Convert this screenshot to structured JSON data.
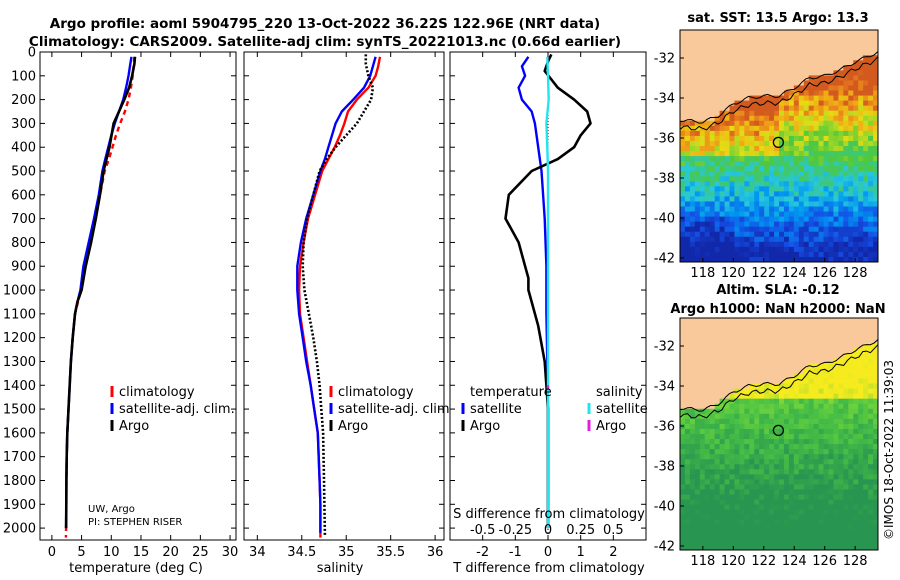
{
  "header": {
    "line1": "Argo profile: aoml 5904795_220 13-Oct-2022 36.22S 122.96E (NRT data)",
    "line2": "Climatology: CARS2009. Satellite-adj clim: synTS_20221013.nc (0.66d earlier)"
  },
  "credit": "UW, Argo",
  "pi": "PI: STEPHEN RISER",
  "watermark": "©IMOS 18-Oct-2022 11:39:03",
  "colors": {
    "climatology": "#ff0000",
    "satellite": "#0000ff",
    "argo": "#000000",
    "sat_salinity": "#22e5f2",
    "argo_salinity": "#e020e0",
    "land": "#f9c99b"
  },
  "chart_data": [
    {
      "type": "line",
      "panel": "temperature",
      "xlabel": "temperature (deg C)",
      "xlim": [
        -2,
        31
      ],
      "ylim": [
        0,
        2050
      ],
      "y_reversed": true,
      "xticks": [
        0,
        5,
        10,
        15,
        20,
        25,
        30
      ],
      "yticks": [
        0,
        100,
        200,
        300,
        400,
        500,
        600,
        700,
        800,
        900,
        1000,
        1100,
        1200,
        1300,
        1400,
        1500,
        1600,
        1700,
        1800,
        1900,
        2000
      ],
      "legend": [
        "climatology",
        "satellite-adj. clim.",
        "Argo"
      ],
      "legend_position": "lower-right",
      "series": [
        {
          "name": "climatology",
          "style": "red dashed",
          "x": [
            13.9,
            13.8,
            13.6,
            13.3,
            12.9,
            12.3,
            11.5,
            10.8,
            10.2,
            9.6,
            8.9,
            8.1,
            7.3,
            6.3,
            5.4,
            4.9,
            4.4,
            3.9,
            3.5,
            3.2,
            3.0,
            2.8,
            2.6,
            2.5,
            2.45,
            2.42,
            2.4,
            2.38,
            2.36
          ],
          "y": [
            20,
            50,
            100,
            150,
            200,
            250,
            300,
            350,
            400,
            450,
            500,
            600,
            700,
            800,
            900,
            1000,
            1050,
            1100,
            1200,
            1300,
            1400,
            1500,
            1600,
            1700,
            1800,
            1900,
            2000,
            2020,
            2040
          ]
        },
        {
          "name": "satellite-adj. clim.",
          "style": "blue solid",
          "x": [
            13.4,
            13.2,
            12.9,
            12.5,
            12.0,
            11.3,
            10.6,
            10.0,
            9.5,
            9.0,
            8.5,
            7.9,
            7.1,
            6.2,
            5.3,
            4.8,
            4.3,
            3.9,
            3.5,
            3.2,
            3.0,
            2.8,
            2.6,
            2.5,
            2.45,
            2.42,
            2.4
          ],
          "y": [
            20,
            50,
            100,
            150,
            200,
            250,
            300,
            350,
            400,
            450,
            500,
            600,
            700,
            800,
            900,
            1000,
            1050,
            1100,
            1200,
            1300,
            1400,
            1500,
            1600,
            1700,
            1800,
            1900,
            2000
          ]
        },
        {
          "name": "Argo",
          "style": "black solid",
          "x": [
            14.0,
            13.9,
            13.5,
            13.0,
            12.2,
            11.3,
            10.4,
            9.7,
            9.2,
            8.7,
            8.1,
            7.4,
            6.6,
            5.7,
            5.0,
            4.3,
            3.9,
            3.5,
            3.2,
            3.0,
            2.8,
            2.6,
            2.5,
            2.45,
            2.42,
            2.4
          ],
          "y": [
            20,
            50,
            100,
            150,
            200,
            250,
            300,
            400,
            450,
            500,
            600,
            700,
            800,
            900,
            1000,
            1050,
            1100,
            1200,
            1300,
            1400,
            1500,
            1600,
            1700,
            1800,
            1900,
            2000
          ]
        }
      ]
    },
    {
      "type": "line",
      "panel": "salinity",
      "xlabel": "salinity",
      "xlim": [
        33.85,
        36.1
      ],
      "ylim": [
        0,
        2050
      ],
      "y_reversed": true,
      "xticks": [
        34,
        34.5,
        35,
        35.5,
        36
      ],
      "legend": [
        "climatology",
        "satellite-adj. clim.",
        "Argo"
      ],
      "legend_position": "lower-right",
      "series": [
        {
          "name": "climatology",
          "style": "red solid",
          "x": [
            35.38,
            35.36,
            35.33,
            35.25,
            35.12,
            35.02,
            34.98,
            34.93,
            34.87,
            34.8,
            34.73,
            34.65,
            34.57,
            34.52,
            34.48,
            34.47,
            34.48,
            34.52,
            34.56,
            34.6,
            34.64,
            34.68,
            34.7,
            34.71,
            34.71
          ],
          "y": [
            20,
            60,
            100,
            150,
            200,
            250,
            300,
            350,
            400,
            450,
            500,
            600,
            700,
            800,
            900,
            1000,
            1100,
            1200,
            1300,
            1400,
            1500,
            1600,
            1800,
            1900,
            2040
          ]
        },
        {
          "name": "satellite-adj. clim.",
          "style": "blue solid",
          "x": [
            35.33,
            35.3,
            35.27,
            35.2,
            35.08,
            34.95,
            34.88,
            34.84,
            34.8,
            34.76,
            34.71,
            34.63,
            34.55,
            34.49,
            34.45,
            34.45,
            34.47,
            34.51,
            34.55,
            34.6,
            34.64,
            34.68,
            34.7,
            34.71,
            34.71
          ],
          "y": [
            20,
            60,
            100,
            150,
            200,
            250,
            300,
            350,
            400,
            450,
            500,
            600,
            700,
            800,
            900,
            1000,
            1100,
            1200,
            1300,
            1400,
            1500,
            1600,
            1800,
            1900,
            2020
          ]
        },
        {
          "name": "Argo",
          "style": "black dotted",
          "x": [
            35.22,
            35.22,
            35.25,
            35.3,
            35.28,
            35.2,
            35.12,
            35.0,
            34.88,
            34.78,
            34.7,
            34.63,
            34.56,
            34.52,
            34.51,
            34.53,
            34.58,
            34.63,
            34.67,
            34.7,
            34.72,
            34.74,
            34.75,
            34.76
          ],
          "y": [
            10,
            50,
            100,
            150,
            200,
            250,
            300,
            350,
            400,
            450,
            500,
            600,
            700,
            800,
            900,
            1000,
            1100,
            1200,
            1300,
            1400,
            1500,
            1600,
            1800,
            2030
          ]
        }
      ]
    },
    {
      "type": "line",
      "panel": "difference",
      "xlabel": "T difference from climatology",
      "xlabel_top": "S difference from climatology",
      "xlim": [
        -3,
        3
      ],
      "ylim": [
        0,
        2050
      ],
      "y_reversed": true,
      "xticks": [
        -2,
        -1,
        0,
        1,
        2
      ],
      "xticks_top": [
        "-0.5",
        "-0.25",
        "0",
        "0.25",
        "0.5"
      ],
      "legend_groups": [
        {
          "title": "temperature",
          "entries": [
            "satellite",
            "Argo"
          ]
        },
        {
          "title": "salinity",
          "entries": [
            "satellite",
            "Argo"
          ]
        }
      ],
      "series": [
        {
          "name": "temperature satellite",
          "style": "blue solid",
          "x": [
            -0.6,
            -0.8,
            -0.7,
            -0.9,
            -0.8,
            -0.5,
            -0.4,
            -0.3,
            -0.2,
            -0.15,
            -0.1,
            -0.05,
            -0.05,
            -0.02,
            0,
            0,
            0
          ],
          "y": [
            20,
            60,
            100,
            150,
            200,
            250,
            300,
            400,
            500,
            600,
            700,
            900,
            1100,
            1300,
            1500,
            1800,
            2000
          ]
        },
        {
          "name": "temperature Argo",
          "style": "black solid",
          "x": [
            0.1,
            0,
            -0.1,
            0.3,
            0.8,
            1.2,
            1.3,
            1.0,
            0.8,
            0.3,
            -0.5,
            -1.2,
            -1.3,
            -1.1,
            -0.9,
            -0.7,
            -0.6,
            -0.6,
            -0.5,
            -0.3,
            -0.1,
            -0.05,
            0,
            0,
            0
          ],
          "y": [
            10,
            40,
            80,
            150,
            200,
            250,
            300,
            350,
            400,
            450,
            500,
            600,
            700,
            750,
            800,
            900,
            950,
            1000,
            1050,
            1150,
            1300,
            1400,
            1500,
            1800,
            2000
          ]
        },
        {
          "name": "salinity satellite",
          "style": "cyan solid",
          "x": [
            -0.02,
            0,
            0.02,
            -0.05,
            -0.02,
            0,
            0,
            0,
            0
          ],
          "y": [
            20,
            100,
            200,
            300,
            400,
            500,
            800,
            1200,
            2000
          ]
        },
        {
          "name": "salinity Argo",
          "style": "magenta solid",
          "x": [
            0,
            0
          ],
          "y": [
            1400,
            1420
          ]
        }
      ]
    },
    {
      "type": "heatmap",
      "panel": "map-sst",
      "title": "sat. SST: 13.5 Argo: 13.3",
      "xticks": [
        "118",
        "120",
        "122",
        "124",
        "126",
        "128"
      ],
      "yticks": [
        "-32",
        "-34",
        "-36",
        "-38",
        "-40",
        "-42"
      ],
      "xlim": [
        116.5,
        129.5
      ],
      "ylim": [
        -42.2,
        -30.6
      ],
      "marker": {
        "lon": 122.96,
        "lat": -36.22
      }
    },
    {
      "type": "heatmap",
      "panel": "map-sla",
      "title": "Altim. SLA: -0.12",
      "subtitle": "Argo h1000: NaN h2000: NaN",
      "xticks": [
        "118",
        "120",
        "122",
        "124",
        "126",
        "128"
      ],
      "yticks": [
        "-32",
        "-34",
        "-36",
        "-38",
        "-40",
        "-42"
      ],
      "xlim": [
        116.5,
        129.5
      ],
      "ylim": [
        -42.2,
        -30.6
      ],
      "marker": {
        "lon": 122.96,
        "lat": -36.22
      }
    }
  ]
}
